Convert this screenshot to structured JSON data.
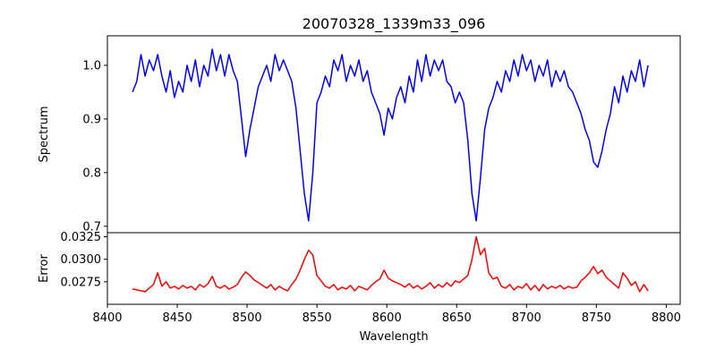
{
  "chart_data": {
    "type": "line",
    "title": "20070328_1339m33_096",
    "xlabel": "Wavelength",
    "xlim": [
      8400,
      8810
    ],
    "xticks": [
      "8400",
      "8450",
      "8500",
      "8550",
      "8600",
      "8650",
      "8700",
      "8750",
      "8800"
    ],
    "x_start": 8418,
    "x_step": 3,
    "panels": [
      {
        "name": "spectrum",
        "ylabel": "Spectrum",
        "ylim": [
          0.688,
          1.055
        ],
        "yticks": [
          "0.7",
          "0.8",
          "0.9",
          "1.0"
        ],
        "color": "#0000ff",
        "values": [
          0.95,
          0.97,
          1.02,
          0.98,
          1.01,
          0.99,
          1.02,
          0.98,
          0.95,
          0.99,
          0.94,
          0.97,
          0.95,
          1.0,
          0.97,
          1.01,
          0.96,
          1.0,
          0.98,
          1.03,
          0.99,
          1.02,
          0.98,
          1.02,
          0.99,
          0.97,
          0.9,
          0.83,
          0.88,
          0.92,
          0.96,
          0.98,
          1.0,
          0.97,
          1.02,
          0.99,
          1.01,
          0.99,
          0.97,
          0.92,
          0.84,
          0.76,
          0.71,
          0.8,
          0.93,
          0.95,
          0.98,
          0.96,
          1.01,
          0.99,
          1.02,
          0.97,
          1.0,
          0.98,
          1.01,
          0.97,
          0.99,
          0.95,
          0.93,
          0.91,
          0.87,
          0.92,
          0.9,
          0.94,
          0.96,
          0.93,
          0.98,
          0.95,
          1.01,
          0.97,
          1.02,
          0.98,
          1.01,
          0.99,
          1.01,
          0.97,
          0.96,
          0.93,
          0.95,
          0.93,
          0.86,
          0.76,
          0.71,
          0.79,
          0.88,
          0.92,
          0.94,
          0.97,
          0.95,
          0.99,
          0.97,
          1.01,
          0.98,
          1.02,
          0.99,
          1.01,
          0.97,
          1.0,
          0.98,
          1.01,
          0.96,
          0.99,
          0.97,
          0.99,
          0.96,
          0.95,
          0.93,
          0.91,
          0.88,
          0.86,
          0.82,
          0.81,
          0.84,
          0.88,
          0.91,
          0.96,
          0.93,
          0.98,
          0.95,
          0.99,
          0.97,
          1.01,
          0.96,
          1.0
        ]
      },
      {
        "name": "error",
        "ylabel": "Error",
        "ylim": [
          0.025,
          0.03295
        ],
        "yticks": [
          "0.0275",
          "0.0300",
          "0.0325"
        ],
        "color": "#ff0000",
        "values": [
          0.0267,
          0.0266,
          0.0265,
          0.0264,
          0.0268,
          0.0272,
          0.0285,
          0.027,
          0.0275,
          0.0268,
          0.027,
          0.0267,
          0.0271,
          0.0268,
          0.027,
          0.0266,
          0.0272,
          0.0269,
          0.0273,
          0.0281,
          0.027,
          0.0268,
          0.0271,
          0.0267,
          0.0269,
          0.0272,
          0.028,
          0.0286,
          0.0282,
          0.0277,
          0.0274,
          0.0271,
          0.0268,
          0.0272,
          0.0266,
          0.027,
          0.0267,
          0.0265,
          0.0272,
          0.0278,
          0.0288,
          0.03,
          0.031,
          0.0305,
          0.0282,
          0.0276,
          0.027,
          0.0268,
          0.0272,
          0.0266,
          0.0269,
          0.0267,
          0.0271,
          0.0265,
          0.027,
          0.0268,
          0.0266,
          0.0271,
          0.0275,
          0.0278,
          0.0288,
          0.0279,
          0.0276,
          0.0274,
          0.0272,
          0.0269,
          0.0273,
          0.0268,
          0.0271,
          0.0267,
          0.027,
          0.0274,
          0.0268,
          0.0272,
          0.0269,
          0.0274,
          0.027,
          0.0276,
          0.0274,
          0.0278,
          0.0282,
          0.03,
          0.0325,
          0.0305,
          0.0312,
          0.0285,
          0.0278,
          0.028,
          0.027,
          0.0268,
          0.0272,
          0.0266,
          0.027,
          0.0268,
          0.0273,
          0.0266,
          0.0271,
          0.0265,
          0.0272,
          0.0267,
          0.027,
          0.0268,
          0.0271,
          0.0267,
          0.027,
          0.0268,
          0.0269,
          0.0276,
          0.028,
          0.0285,
          0.0292,
          0.0284,
          0.0288,
          0.028,
          0.0276,
          0.0272,
          0.0268,
          0.0285,
          0.0279,
          0.0271,
          0.0275,
          0.0264,
          0.0272,
          0.0265
        ]
      }
    ]
  }
}
